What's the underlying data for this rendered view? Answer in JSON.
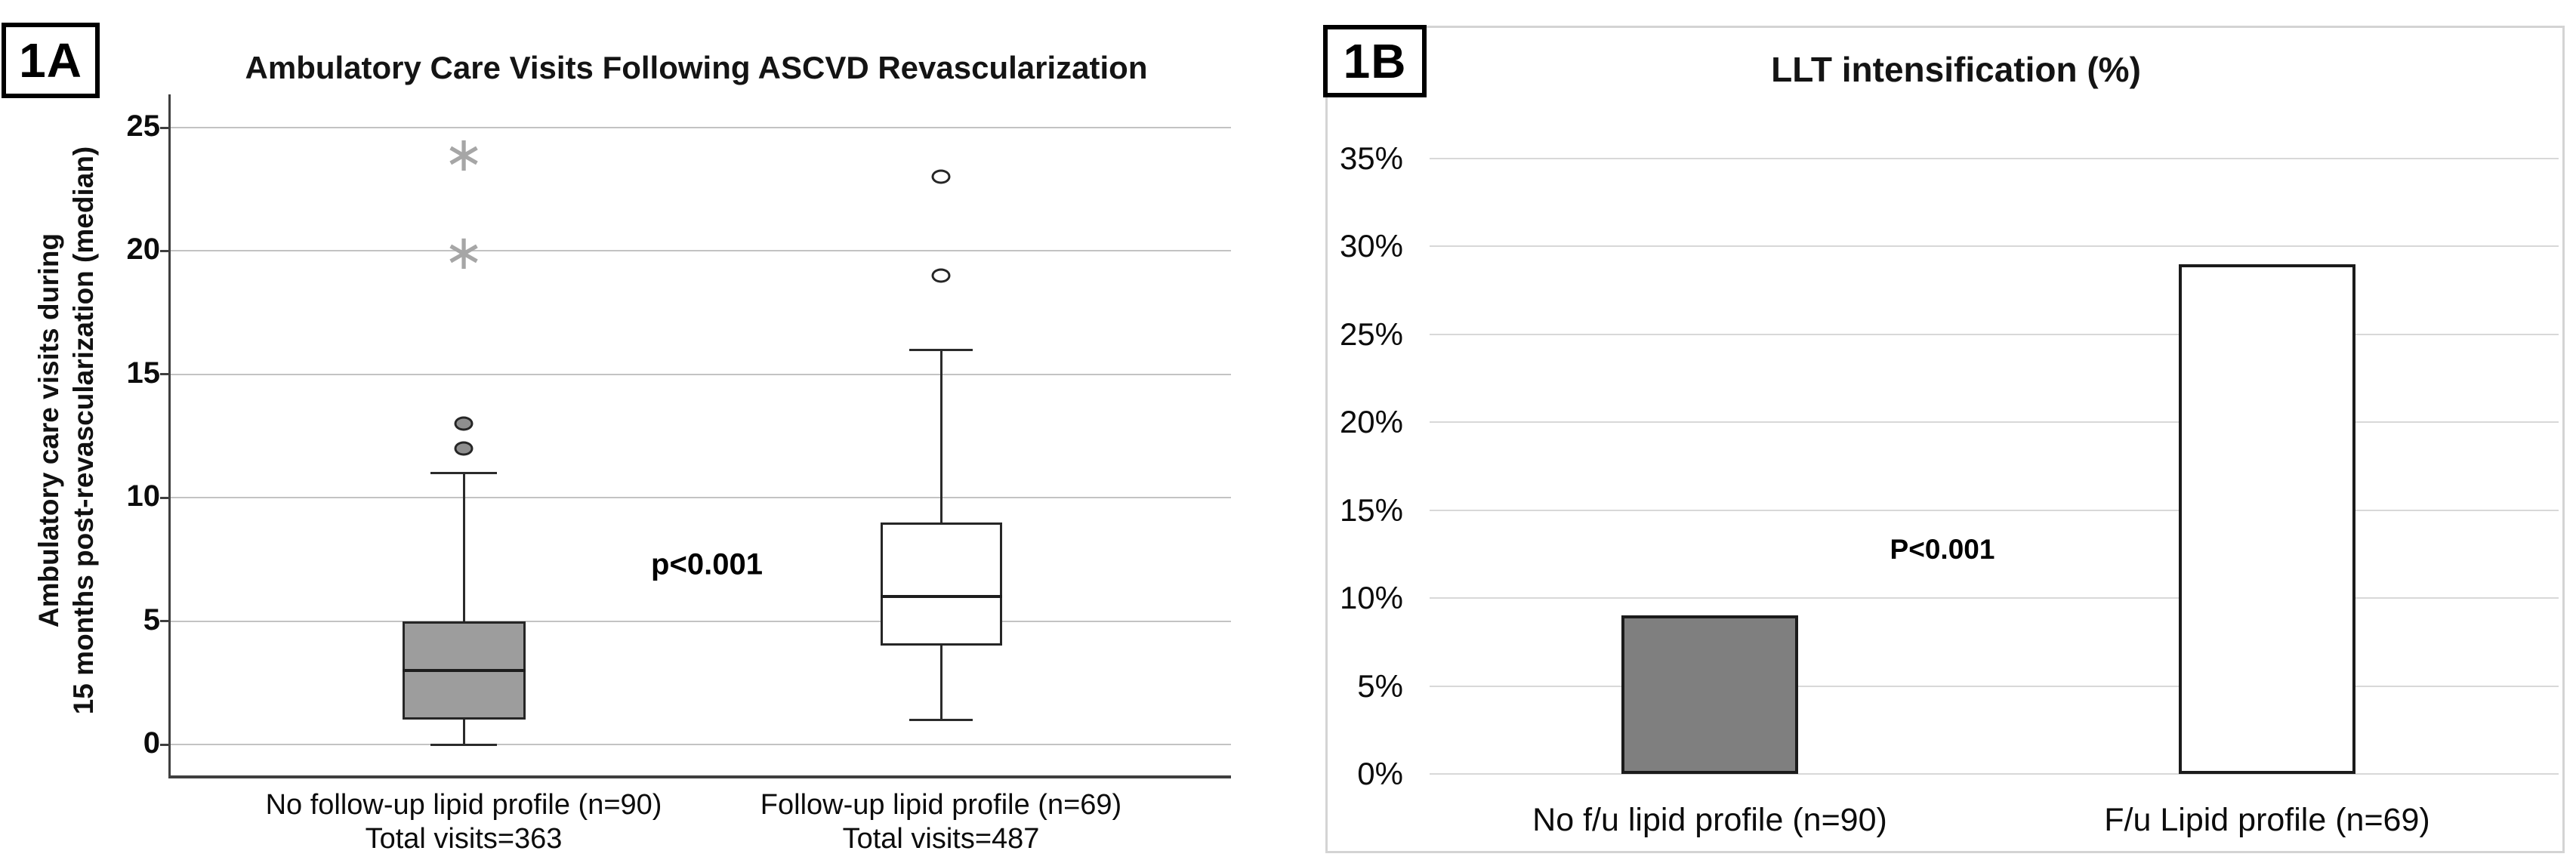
{
  "figure": {
    "background": "#ffffff"
  },
  "colors": {
    "panel_a_grid": "#c3c3c3",
    "panel_a_axis": "#3f3f3f",
    "panel_a_box_gray": "#9d9d9d",
    "panel_a_outlier_gray": "#8f8f8f",
    "panel_a_star_gray": "#a6a6a6",
    "panel_b_grid": "#d8d8d8",
    "panel_b_frame": "#d4d4d4",
    "panel_b_bar_gray": "#7f7f7f",
    "panel_b_bar_white": "#ffffff"
  },
  "glyphs": {
    "extreme_outlier_star": "∗"
  },
  "chart_data": [
    {
      "type": "boxplot",
      "panel": "1A",
      "title": "Ambulatory Care Visits Following ASCVD Revascularization",
      "ylabel_lines": [
        "Ambulatory care visits during",
        "15 months post-revascularization (median)"
      ],
      "yticks": [
        0,
        5,
        10,
        15,
        20,
        25
      ],
      "ylim": [
        0,
        25
      ],
      "grid": true,
      "annotation": "p<0.001",
      "groups": [
        {
          "label": "No follow-up lipid profile (n=90)",
          "sublabel": "Total visits=363",
          "whisker_low": 0,
          "q1": 1,
          "median": 3,
          "q3": 5,
          "whisker_high": 11,
          "outliers_circle": [
            12,
            13
          ],
          "outliers_star": [
            20,
            24
          ],
          "box_fill": "#9d9d9d",
          "circle_fill": "#8f8f8f"
        },
        {
          "label": "Follow-up lipid profile (n=69)",
          "sublabel": "Total visits=487",
          "whisker_low": 1,
          "q1": 4,
          "median": 6,
          "q3": 9,
          "whisker_high": 16,
          "outliers_circle": [
            19,
            23
          ],
          "outliers_star": [],
          "box_fill": "#ffffff",
          "circle_fill": "#ffffff"
        }
      ]
    },
    {
      "type": "bar",
      "panel": "1B",
      "title": "LLT intensification (%)",
      "categories": [
        "No f/u lipid profile (n=90)",
        "F/u Lipid profile (n=69)"
      ],
      "values": [
        9,
        29
      ],
      "ytick_labels": [
        "0%",
        "5%",
        "10%",
        "15%",
        "20%",
        "25%",
        "30%",
        "35%"
      ],
      "ytick_values": [
        0,
        5,
        10,
        15,
        20,
        25,
        30,
        35
      ],
      "ylim": [
        0,
        35
      ],
      "grid": true,
      "legend": "none",
      "annotation": "P<0.001",
      "bar_fills": [
        "#7f7f7f",
        "#ffffff"
      ]
    }
  ]
}
